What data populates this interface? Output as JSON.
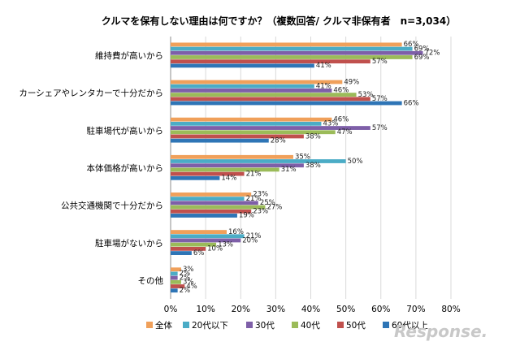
{
  "chart_data": {
    "type": "bar",
    "orientation": "horizontal",
    "title": "クルマを保有しない理由は何ですか？（複数回答/ クルマ非保有者　n=3,034）",
    "categories": [
      "維持費が高いから",
      "カーシェアやレンタカーで十分だから",
      "駐車場代が高いから",
      "本体価格が高いから",
      "公共交通機関で十分だから",
      "駐車場がないから",
      "その他"
    ],
    "series": [
      {
        "name": "全体",
        "color": "#f0a05a",
        "values": [
          66,
          49,
          46,
          35,
          23,
          16,
          3
        ]
      },
      {
        "name": "20代以下",
        "color": "#4bacc6",
        "values": [
          69,
          41,
          43,
          50,
          21,
          21,
          2
        ]
      },
      {
        "name": "30代",
        "color": "#7e5fa8",
        "values": [
          72,
          46,
          57,
          38,
          25,
          20,
          2
        ]
      },
      {
        "name": "40代",
        "color": "#9bbb59",
        "values": [
          69,
          53,
          47,
          31,
          27,
          13,
          3
        ]
      },
      {
        "name": "50代",
        "color": "#c0504d",
        "values": [
          57,
          57,
          38,
          21,
          23,
          10,
          4
        ]
      },
      {
        "name": "60代以上",
        "color": "#2e75b6",
        "values": [
          41,
          66,
          28,
          14,
          19,
          6,
          2
        ]
      }
    ],
    "value_labels": [
      [
        "66%",
        "69%",
        "72%",
        "69%",
        "57%",
        "41%"
      ],
      [
        "49%",
        "41%",
        "46%",
        "53%",
        "57%",
        "66%"
      ],
      [
        "46%",
        "43%",
        "57%",
        "47%",
        "38%",
        "28%"
      ],
      [
        "35%",
        "50%",
        "38%",
        "31%",
        "21%",
        "14%"
      ],
      [
        "23%",
        "21%",
        "25%",
        "27%",
        "23%",
        "19%"
      ],
      [
        "16%",
        "21%",
        "20%",
        "13%",
        "10%",
        "6%"
      ],
      [
        "3%",
        "2%",
        "2%",
        "3%",
        "4%",
        "2%"
      ]
    ],
    "xlim": [
      0,
      80
    ],
    "xticks": [
      "0%",
      "10%",
      "20%",
      "30%",
      "40%",
      "50%",
      "60%",
      "70%",
      "80%"
    ],
    "grid": true,
    "legend_position": "bottom"
  },
  "watermark": "Response."
}
